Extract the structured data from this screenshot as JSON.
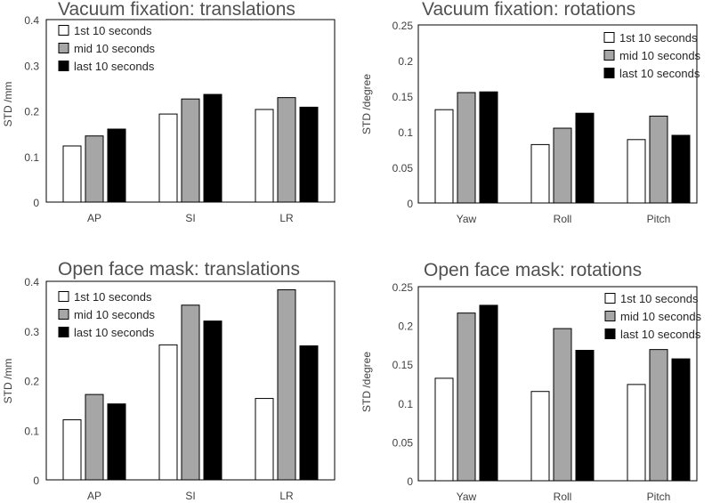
{
  "chart_data": [
    {
      "type": "bar",
      "title": "Vacuum fixation: translations",
      "ylabel": "STD /mm",
      "xlabel": "",
      "categories": [
        "AP",
        "SI",
        "LR"
      ],
      "ylim": [
        0,
        0.4
      ],
      "yticks": [
        "0",
        "0.1",
        "0.2",
        "0.3",
        "0.4"
      ],
      "legend_position": "top-left",
      "grid": false,
      "series": [
        {
          "name": "1st 10 seconds",
          "color": "#ffffff",
          "values": [
            0.123,
            0.193,
            0.203
          ]
        },
        {
          "name": "mid 10 seconds",
          "color": "#a6a6a6",
          "values": [
            0.145,
            0.226,
            0.229
          ]
        },
        {
          "name": "last 10 seconds",
          "color": "#000000",
          "values": [
            0.16,
            0.236,
            0.208
          ]
        }
      ]
    },
    {
      "type": "bar",
      "title": "Vacuum fixation: rotations",
      "ylabel": "STD /degree",
      "xlabel": "",
      "categories": [
        "Yaw",
        "Roll",
        "Pitch"
      ],
      "ylim": [
        0,
        0.25
      ],
      "yticks": [
        "0",
        "0.05",
        "0.1",
        "0.15",
        "0.2",
        "0.25"
      ],
      "legend_position": "top-right",
      "grid": false,
      "series": [
        {
          "name": "1st 10 seconds",
          "color": "#ffffff",
          "values": [
            0.131,
            0.082,
            0.089
          ]
        },
        {
          "name": "mid 10 seconds",
          "color": "#a6a6a6",
          "values": [
            0.155,
            0.105,
            0.122
          ]
        },
        {
          "name": "last 10 seconds",
          "color": "#000000",
          "values": [
            0.156,
            0.126,
            0.095
          ]
        }
      ]
    },
    {
      "type": "bar",
      "title": "Open face mask: translations",
      "ylabel": "STD /mm",
      "xlabel": "",
      "categories": [
        "AP",
        "SI",
        "LR"
      ],
      "ylim": [
        0,
        0.4
      ],
      "yticks": [
        "0",
        "0.1",
        "0.2",
        "0.3",
        "0.4"
      ],
      "legend_position": "top-left",
      "grid": false,
      "series": [
        {
          "name": "1st 10 seconds",
          "color": "#ffffff",
          "values": [
            0.121,
            0.272,
            0.164
          ]
        },
        {
          "name": "mid 10 seconds",
          "color": "#a6a6a6",
          "values": [
            0.172,
            0.352,
            0.383
          ]
        },
        {
          "name": "last 10 seconds",
          "color": "#000000",
          "values": [
            0.153,
            0.32,
            0.27
          ]
        }
      ]
    },
    {
      "type": "bar",
      "title": "Open face mask: rotations",
      "ylabel": "STD /degree",
      "xlabel": "",
      "categories": [
        "Yaw",
        "Roll",
        "Pitch"
      ],
      "ylim": [
        0,
        0.25
      ],
      "yticks": [
        "0",
        "0.05",
        "0.1",
        "0.15",
        "0.2",
        "0.25"
      ],
      "legend_position": "top-right",
      "grid": false,
      "series": [
        {
          "name": "1st 10 seconds",
          "color": "#ffffff",
          "values": [
            0.132,
            0.115,
            0.124
          ]
        },
        {
          "name": "mid 10 seconds",
          "color": "#a6a6a6",
          "values": [
            0.216,
            0.196,
            0.169
          ]
        },
        {
          "name": "last 10 seconds",
          "color": "#000000",
          "values": [
            0.226,
            0.168,
            0.157
          ]
        }
      ]
    }
  ]
}
